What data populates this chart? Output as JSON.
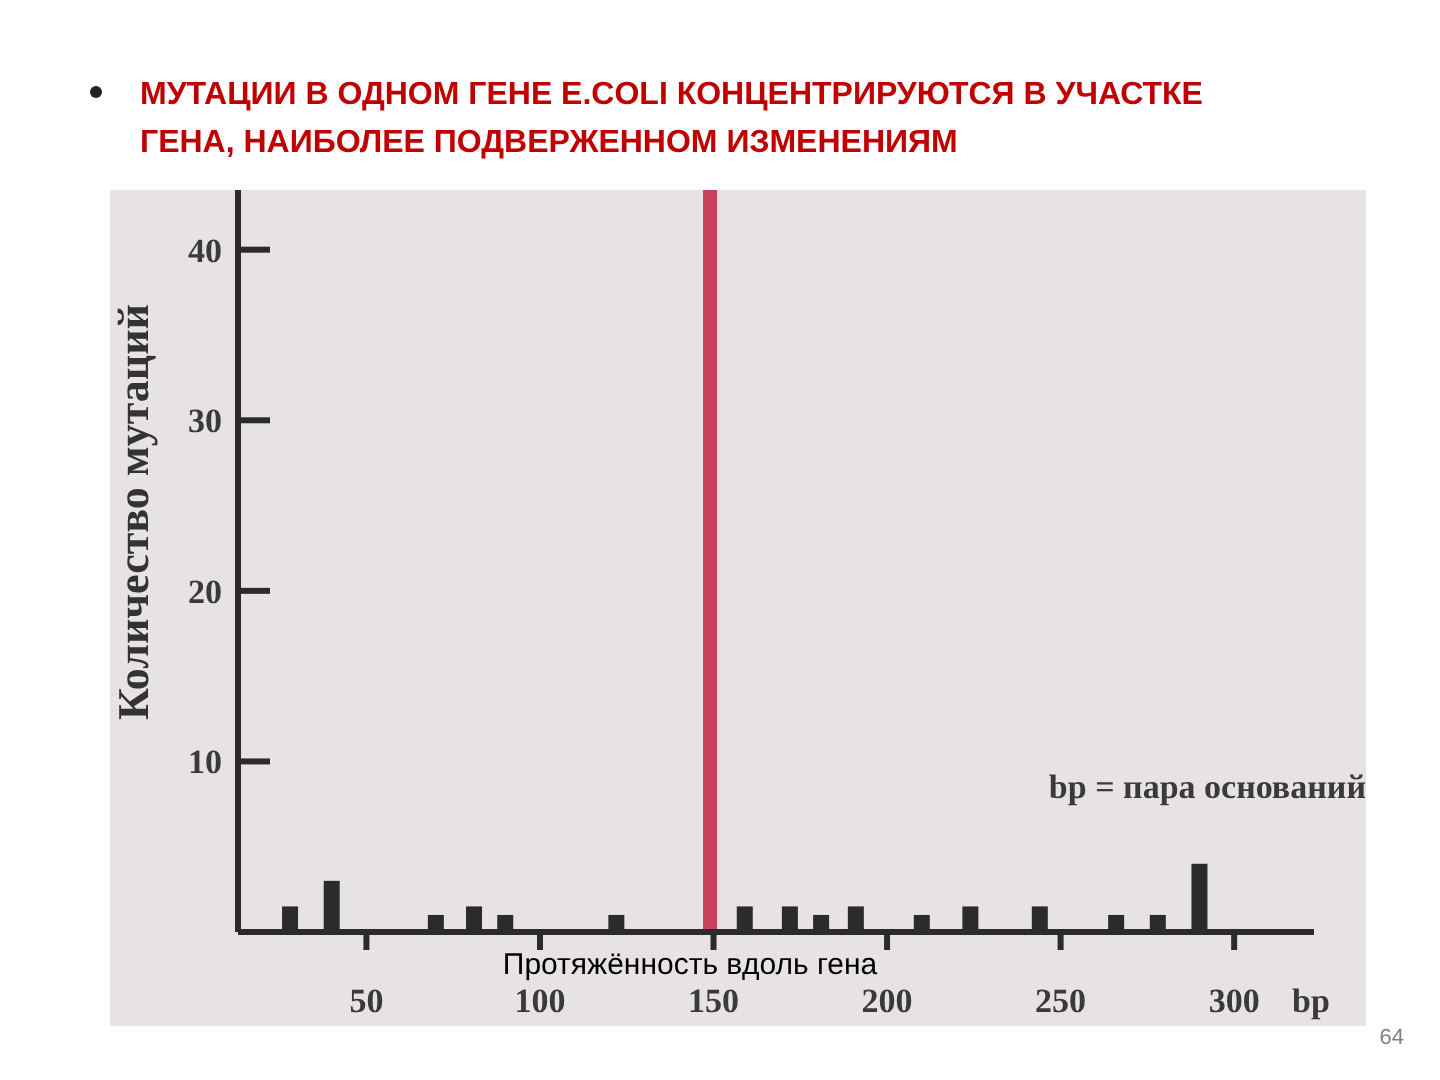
{
  "chart_data": {
    "type": "bar",
    "title": "МУТАЦИИ В ОДНОМ ГЕНЕ E.COLI КОНЦЕНТРИРУЮТСЯ В УЧАСТКЕ ГЕНА, НАИБОЛЕЕ ПОДВЕРЖЕННОМ ИЗМЕНЕНИЯМ",
    "xlabel": "Протяжённость вдоль гена",
    "ylabel": "Количество мутаций",
    "x": [
      28,
      40,
      70,
      81,
      90,
      122,
      159,
      172,
      181,
      191,
      210,
      224,
      244,
      266,
      278,
      290
    ],
    "values": [
      1.5,
      3,
      1,
      1.5,
      1,
      1,
      1.5,
      1.5,
      1,
      1.5,
      1,
      1.5,
      1.5,
      1,
      1,
      4
    ],
    "color": "#2b2b2b",
    "xlim": [
      13,
      323
    ],
    "ylim": [
      0,
      43.5
    ],
    "xticks": [
      50,
      100,
      150,
      200,
      250,
      300
    ],
    "yticks": [
      10,
      20,
      30,
      40
    ],
    "ref_lines": [
      {
        "axis": "x",
        "value": 149,
        "color": "#c8405a"
      }
    ],
    "annotations": [
      "bp = пара оснований",
      "bp",
      "64"
    ]
  }
}
